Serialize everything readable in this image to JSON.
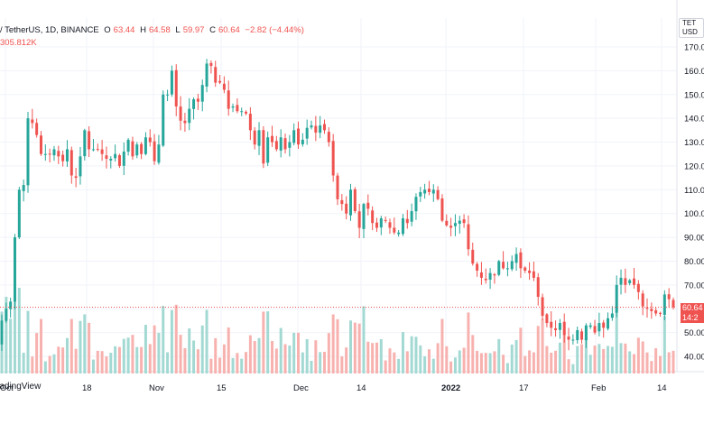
{
  "header": {
    "symbol": "/ TetherUS, 1D, BINANCE",
    "o_label": "O",
    "o_value": "63.44",
    "h_label": "H",
    "h_value": "64.58",
    "l_label": "L",
    "l_value": "59.97",
    "c_label": "C",
    "c_value": "60.64",
    "change": "−2.82 (−4.44%)",
    "volume": "305.812K"
  },
  "axis": {
    "currency_line1": "TET",
    "currency_line2": "USD"
  },
  "last_price": {
    "value": "60.64",
    "countdown": "14:2"
  },
  "watermark": "radingView",
  "colors": {
    "up": "#26a69a",
    "down": "#ef5350",
    "vol_up": "#a3d9d3",
    "vol_down": "#f7b1ae",
    "grid": "#f0f3fa"
  },
  "chart_data": {
    "type": "candlestick",
    "title": "/ TetherUS, 1D, BINANCE",
    "ylim": [
      35,
      175
    ],
    "y_ticks": [
      "170.00",
      "160.00",
      "150.00",
      "140.00",
      "130.00",
      "120.00",
      "110.00",
      "100.00",
      "90.00",
      "80.00",
      "70.00",
      "60.00",
      "50.00",
      "40.00"
    ],
    "x_ticks": [
      "Oct",
      "18",
      "Nov",
      "15",
      "Dec",
      "14",
      "2022",
      "17",
      "Feb",
      "14"
    ],
    "last_close": 60.64,
    "closes": [
      55,
      60,
      63,
      90,
      110,
      112,
      140,
      138,
      133,
      125,
      125,
      125,
      127,
      124,
      122,
      127,
      116,
      115,
      124,
      135,
      127,
      127,
      127,
      125,
      123,
      123,
      125,
      120,
      126,
      131,
      124,
      129,
      125,
      132,
      130,
      122,
      129,
      150,
      150,
      160,
      145,
      139,
      138,
      144,
      148,
      147,
      154,
      163,
      162,
      155,
      155,
      152,
      144,
      145,
      143,
      143,
      142,
      135,
      129,
      135,
      121,
      132,
      130,
      127,
      132,
      127,
      130,
      135,
      129,
      131,
      136,
      137,
      134,
      137,
      135,
      130,
      116,
      106,
      104,
      100,
      110,
      101,
      94,
      104,
      102,
      96,
      94,
      98,
      97,
      94,
      92,
      92,
      98,
      96,
      101,
      107,
      109,
      110,
      109,
      110,
      106,
      97,
      95,
      94,
      96,
      97,
      96,
      85,
      79,
      76,
      73,
      72,
      75,
      74,
      80,
      77,
      77,
      80,
      83,
      77,
      76,
      75,
      73,
      65,
      57,
      54,
      52,
      51,
      54,
      49,
      47,
      47,
      51,
      47,
      53,
      53,
      50,
      54,
      52,
      56,
      58,
      70,
      73,
      70,
      72,
      70,
      67,
      61,
      60,
      59,
      58,
      58,
      66,
      64,
      60.64
    ]
  }
}
